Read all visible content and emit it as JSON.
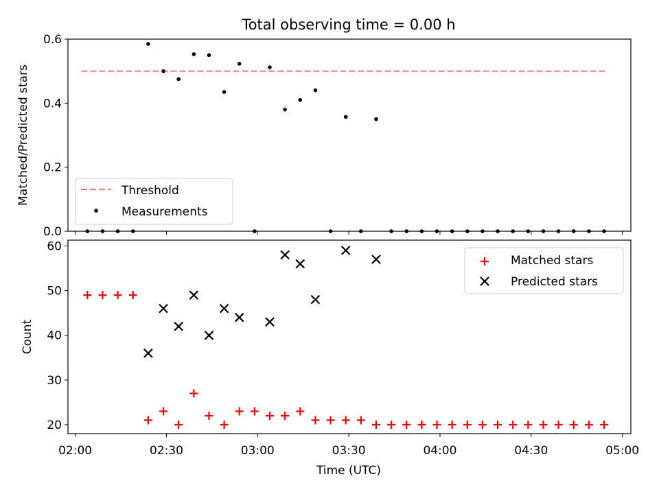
{
  "chart_data": {
    "title": "Total observing time = 0.00 h",
    "x_label": "Time (UTC)",
    "x_ticks": [
      "02:00",
      "02:30",
      "03:00",
      "03:30",
      "04:00",
      "04:30",
      "05:00"
    ],
    "x_tick_minutes": [
      0,
      30,
      60,
      90,
      120,
      150,
      180
    ],
    "x_range_minutes": [
      -2.4,
      182.8
    ],
    "top": {
      "type": "scatter",
      "ylabel": "Matched/Predicted stars",
      "ylim": [
        0.0,
        0.6
      ],
      "y_ticks": [
        "0.0",
        "0.2",
        "0.4",
        "0.6"
      ],
      "y_tick_values": [
        0.0,
        0.2,
        0.4,
        0.6
      ],
      "threshold": {
        "name": "Threshold",
        "value": 0.5,
        "x_start": 2,
        "x_end": 175,
        "color": "#f08080"
      },
      "measurements": {
        "name": "Measurements",
        "color": "#000000",
        "x": [
          4,
          9,
          14,
          19,
          24,
          29,
          34,
          39,
          44,
          49,
          54,
          59,
          64,
          69,
          74,
          79,
          84,
          89,
          94,
          99,
          104,
          109,
          114,
          119,
          124,
          129,
          134,
          139,
          144,
          149,
          154,
          159,
          164,
          169,
          174
        ],
        "y": [
          0,
          0,
          0,
          0,
          0.585,
          0.5,
          0.475,
          0.553,
          0.55,
          0.435,
          0.523,
          0,
          0.512,
          0.38,
          0.41,
          0.44,
          0,
          0.357,
          0,
          0.35,
          0,
          0,
          0,
          0,
          0,
          0,
          0,
          0,
          0,
          0,
          0,
          0,
          0,
          0,
          0
        ]
      },
      "legend_position": "lower-left"
    },
    "bottom": {
      "type": "scatter",
      "ylabel": "Count",
      "ylim": [
        18,
        61.3
      ],
      "y_ticks": [
        "20",
        "30",
        "40",
        "50",
        "60"
      ],
      "y_tick_values": [
        20,
        30,
        40,
        50,
        60
      ],
      "matched": {
        "name": "Matched stars",
        "color": "#ff0000",
        "x": [
          4,
          9,
          14,
          19,
          24,
          29,
          34,
          39,
          44,
          49,
          54,
          59,
          64,
          69,
          74,
          79,
          84,
          89,
          94,
          99,
          104,
          109,
          114,
          119,
          124,
          129,
          134,
          139,
          144,
          149,
          154,
          159,
          164,
          169,
          174
        ],
        "y": [
          49,
          49,
          49,
          49,
          21,
          23,
          20,
          27,
          22,
          20,
          23,
          23,
          22,
          22,
          23,
          21,
          21,
          21,
          21,
          20,
          20,
          20,
          20,
          20,
          20,
          20,
          20,
          20,
          20,
          20,
          20,
          20,
          20,
          20,
          20
        ]
      },
      "predicted": {
        "name": "Predicted stars",
        "color": "#000000",
        "x": [
          24,
          29,
          34,
          39,
          44,
          49,
          54,
          64,
          69,
          74,
          79,
          89,
          99
        ],
        "y": [
          36,
          46,
          42,
          49,
          40,
          46,
          44,
          43,
          58,
          56,
          48,
          59,
          57
        ]
      },
      "legend_position": "upper-right"
    }
  }
}
